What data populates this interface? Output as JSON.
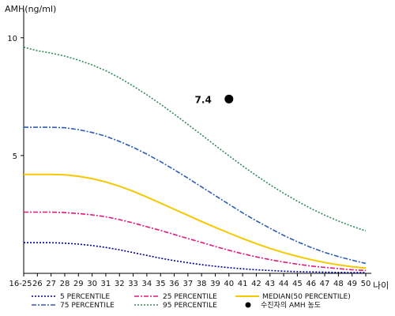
{
  "chart_data": {
    "type": "line",
    "ylabel": "AMH(ng/ml)",
    "xlabel": "나이",
    "categories": [
      "16-25",
      "26",
      "27",
      "28",
      "29",
      "30",
      "31",
      "32",
      "33",
      "34",
      "35",
      "36",
      "37",
      "38",
      "39",
      "40",
      "41",
      "42",
      "43",
      "44",
      "45",
      "46",
      "47",
      "48",
      "49",
      "50"
    ],
    "yticks": [
      5,
      10
    ],
    "ylim": [
      0,
      11.2
    ],
    "grid": false,
    "legend_placement": "bottom",
    "series": [
      {
        "name": "5 PERCENTILE",
        "color": "#00008b",
        "dash": "dotted",
        "values": [
          1.3,
          1.3,
          1.3,
          1.28,
          1.24,
          1.18,
          1.1,
          1.0,
          0.88,
          0.76,
          0.64,
          0.54,
          0.45,
          0.37,
          0.3,
          0.24,
          0.19,
          0.15,
          0.12,
          0.09,
          0.07,
          0.06,
          0.05,
          0.04,
          0.03,
          0.03
        ]
      },
      {
        "name": "25 PERCENTILE",
        "color": "#e0197d",
        "dash": "dashdot",
        "values": [
          2.6,
          2.6,
          2.6,
          2.58,
          2.54,
          2.48,
          2.4,
          2.28,
          2.14,
          1.98,
          1.82,
          1.65,
          1.48,
          1.31,
          1.14,
          0.98,
          0.83,
          0.7,
          0.58,
          0.48,
          0.39,
          0.31,
          0.25,
          0.2,
          0.15,
          0.12
        ]
      },
      {
        "name": "75 PERCENTILE",
        "color": "#2e5cb8",
        "dash": "dashdot",
        "values": [
          6.2,
          6.2,
          6.2,
          6.18,
          6.1,
          5.98,
          5.82,
          5.6,
          5.35,
          5.06,
          4.74,
          4.4,
          4.04,
          3.67,
          3.3,
          2.93,
          2.57,
          2.23,
          1.91,
          1.61,
          1.34,
          1.1,
          0.89,
          0.71,
          0.56,
          0.42
        ]
      },
      {
        "name": "95 PERCENTILE",
        "color": "#2e8b57",
        "dash": "dotted",
        "values": [
          9.6,
          9.45,
          9.35,
          9.22,
          9.05,
          8.85,
          8.6,
          8.3,
          7.95,
          7.58,
          7.18,
          6.76,
          6.32,
          5.88,
          5.43,
          4.99,
          4.56,
          4.15,
          3.76,
          3.4,
          3.06,
          2.75,
          2.47,
          2.22,
          2.0,
          1.8
        ]
      },
      {
        "name": "MEDIAN(50 PERCENTILE)",
        "color": "#f5c800",
        "dash": "solid",
        "values": [
          4.2,
          4.2,
          4.2,
          4.18,
          4.12,
          4.02,
          3.88,
          3.7,
          3.48,
          3.24,
          2.98,
          2.72,
          2.46,
          2.2,
          1.95,
          1.71,
          1.48,
          1.26,
          1.06,
          0.88,
          0.72,
          0.58,
          0.46,
          0.36,
          0.28,
          0.22
        ]
      }
    ],
    "points": [
      {
        "name": "수진자의 AMH 농도",
        "x": "40",
        "y": 7.4,
        "label": "7.4",
        "color": "#000000"
      }
    ]
  }
}
